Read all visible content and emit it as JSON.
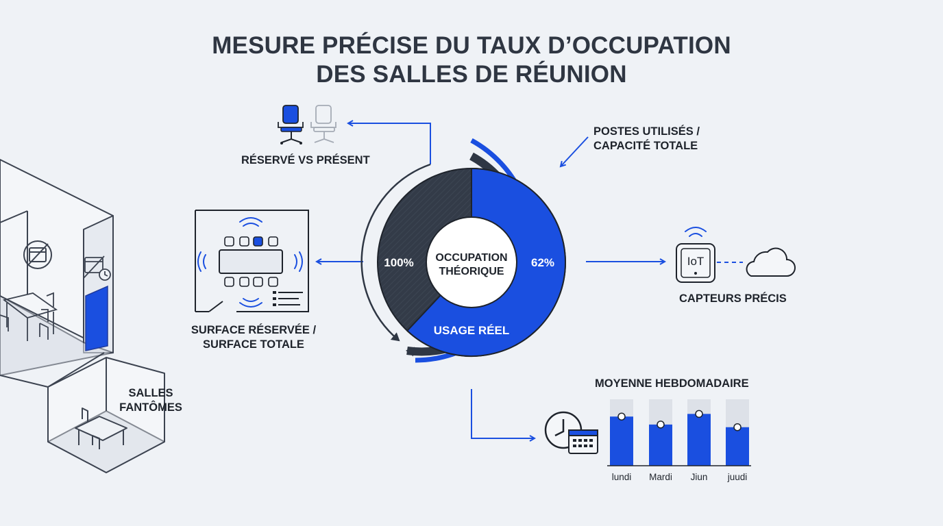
{
  "title": {
    "line1": "MESURE PRÉCISE DU TAUX D’OCCUPATION",
    "line2": "DES SALLES DE RÉUNION"
  },
  "labels": {
    "reserved_vs_present": "RÉSERVÉ VS PRÉSENT",
    "posts_line1": "POSTES UTILISÉS /",
    "posts_line2": "CAPACITÉ TOTALE",
    "surface_line1": "SURFACE RÉSERVÉE /",
    "surface_line2": "SURFACE TOTALE",
    "sensors": "CAPTEURS PRÉCIS",
    "ghost_line1": "SALLES",
    "ghost_line2": "FANTÔMES",
    "weekly_average": "MOYENNE HEBDOMADAIRE",
    "iot": "IoT"
  },
  "donut": {
    "center_line1": "OCCUPATION",
    "center_line2": "THÉORIQUE",
    "left_value": "100%",
    "right_value": "62%",
    "real_usage": "USAGE RÉEL",
    "real_fraction": 0.62
  },
  "chart_data": {
    "type": "bar",
    "title": "MOYENNE HEBDOMADAIRE",
    "categories": [
      "lundi",
      "Mardi",
      "Jiun",
      "juudi"
    ],
    "values": [
      0.74,
      0.62,
      0.78,
      0.58
    ],
    "ylim": [
      0,
      1
    ],
    "grid": false
  },
  "colors": {
    "accent": "#1a4fe0",
    "dark": "#2f3744",
    "background": "#eff2f6",
    "line": "#3c4350"
  },
  "icons": {
    "chairs": "office-chair-icon",
    "floor_plan": "meeting-room-plan-icon",
    "iot": "iot-sensor-icon",
    "cloud": "cloud-icon",
    "calendar": "calendar-clock-icon",
    "no_booking": "calendar-crossed-icon",
    "wifi": "wifi-signal-icon"
  }
}
